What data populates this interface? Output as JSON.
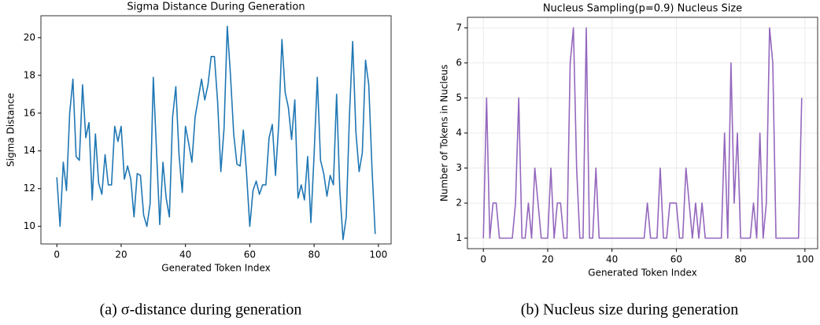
{
  "chart_data": [
    {
      "type": "line",
      "title": "Sigma Distance During Generation",
      "xlabel": "Generated Token Index",
      "ylabel": "Sigma Distance",
      "caption": "(a) σ-distance during generation",
      "x": [
        0,
        1,
        2,
        3,
        4,
        5,
        6,
        7,
        8,
        9,
        10,
        11,
        12,
        13,
        14,
        15,
        16,
        17,
        18,
        19,
        20,
        21,
        22,
        23,
        24,
        25,
        26,
        27,
        28,
        29,
        30,
        31,
        32,
        33,
        34,
        35,
        36,
        37,
        38,
        39,
        40,
        41,
        42,
        43,
        44,
        45,
        46,
        47,
        48,
        49,
        50,
        51,
        52,
        53,
        54,
        55,
        56,
        57,
        58,
        59,
        60,
        61,
        62,
        63,
        64,
        65,
        66,
        67,
        68,
        69,
        70,
        71,
        72,
        73,
        74,
        75,
        76,
        77,
        78,
        79,
        80,
        81,
        82,
        83,
        84,
        85,
        86,
        87,
        88,
        89,
        90,
        91,
        92,
        93,
        94,
        95,
        96,
        97,
        98,
        99
      ],
      "series": [
        {
          "color": "#1f77b4",
          "values": [
            12.6,
            10.0,
            13.4,
            11.9,
            16.0,
            17.8,
            13.7,
            13.5,
            17.5,
            14.7,
            15.5,
            11.4,
            14.9,
            12.3,
            11.7,
            13.8,
            12.2,
            12.2,
            15.3,
            14.5,
            15.3,
            12.5,
            13.2,
            12.5,
            10.5,
            12.8,
            12.7,
            10.6,
            10.0,
            11.2,
            17.9,
            14.0,
            10.1,
            13.4,
            11.5,
            10.5,
            15.8,
            17.4,
            13.8,
            11.8,
            15.3,
            14.4,
            13.4,
            15.8,
            16.8,
            17.8,
            16.7,
            17.5,
            19.0,
            19.0,
            16.6,
            12.9,
            15.2,
            20.6,
            18.0,
            14.9,
            13.3,
            13.2,
            15.1,
            12.8,
            10.0,
            11.9,
            12.4,
            11.7,
            12.2,
            12.2,
            14.7,
            15.4,
            12.7,
            15.4,
            19.9,
            17.1,
            16.3,
            14.6,
            16.7,
            11.5,
            12.2,
            11.4,
            13.7,
            10.2,
            13.8,
            17.9,
            13.5,
            12.8,
            11.6,
            12.7,
            12.2,
            17.0,
            11.9,
            9.3,
            10.5,
            15.9,
            19.8,
            15.0,
            12.9,
            13.9,
            18.8,
            17.5,
            13.1,
            9.6
          ]
        }
      ],
      "xlim": [
        -4.95,
        103.95
      ],
      "xticks": [
        0,
        20,
        40,
        60,
        80,
        100
      ],
      "ylim": [
        9.07,
        21.16
      ],
      "yticks": [
        10,
        12,
        14,
        16,
        18,
        20
      ],
      "grid": false
    },
    {
      "type": "line",
      "title": "Nucleus Sampling(p=0.9) Nucleus Size",
      "xlabel": "Generated Token Index",
      "ylabel": "Number of Tokens in Nucleus",
      "caption": "(b) Nucleus size during generation",
      "x": [
        0,
        1,
        2,
        3,
        4,
        5,
        6,
        7,
        8,
        9,
        10,
        11,
        12,
        13,
        14,
        15,
        16,
        17,
        18,
        19,
        20,
        21,
        22,
        23,
        24,
        25,
        26,
        27,
        28,
        29,
        30,
        31,
        32,
        33,
        34,
        35,
        36,
        37,
        38,
        39,
        40,
        41,
        42,
        43,
        44,
        45,
        46,
        47,
        48,
        49,
        50,
        51,
        52,
        53,
        54,
        55,
        56,
        57,
        58,
        59,
        60,
        61,
        62,
        63,
        64,
        65,
        66,
        67,
        68,
        69,
        70,
        71,
        72,
        73,
        74,
        75,
        76,
        77,
        78,
        79,
        80,
        81,
        82,
        83,
        84,
        85,
        86,
        87,
        88,
        89,
        90,
        91,
        92,
        93,
        94,
        95,
        96,
        97,
        98,
        99
      ],
      "series": [
        {
          "color": "#9467bd",
          "values": [
            1,
            5,
            1,
            2,
            2,
            1,
            1,
            1,
            1,
            1,
            2,
            5,
            1,
            1,
            2,
            1,
            3,
            2,
            1,
            1,
            1,
            3,
            1,
            2,
            2,
            1,
            1,
            6,
            7,
            3,
            1,
            1,
            7,
            1,
            1,
            3,
            1,
            1,
            1,
            1,
            1,
            1,
            1,
            1,
            1,
            1,
            1,
            1,
            1,
            1,
            1,
            2,
            1,
            1,
            1,
            3,
            1,
            1,
            2,
            2,
            2,
            1,
            1,
            3,
            2,
            1,
            2,
            1,
            2,
            1,
            1,
            1,
            1,
            1,
            1,
            4,
            1,
            6,
            2,
            4,
            1,
            1,
            1,
            1,
            2,
            1,
            4,
            1,
            2,
            7,
            6,
            1,
            1,
            1,
            1,
            1,
            1,
            1,
            1,
            5
          ]
        }
      ],
      "xlim": [
        -4.95,
        103.95
      ],
      "xticks": [
        0,
        20,
        40,
        60,
        80,
        100
      ],
      "ylim": [
        0.7,
        7.3
      ],
      "yticks": [
        1,
        2,
        3,
        4,
        5,
        6,
        7
      ],
      "grid": true
    }
  ]
}
